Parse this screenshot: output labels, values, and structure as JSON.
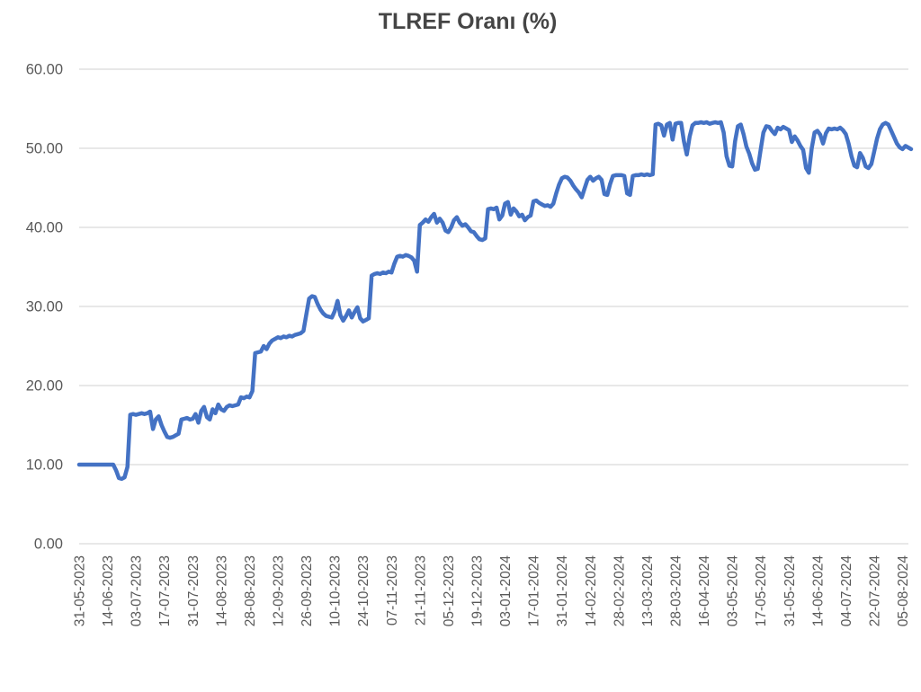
{
  "chart_data": {
    "type": "line",
    "title": "TLREF Oranı (%)",
    "xlabel": "",
    "ylabel": "",
    "ylim": [
      0,
      60
    ],
    "y_ticks": [
      0,
      10,
      20,
      30,
      40,
      50,
      60
    ],
    "y_tick_labels": [
      "0.00",
      "10.00",
      "20.00",
      "30.00",
      "40.00",
      "50.00",
      "60.00"
    ],
    "grid": "horizontal",
    "legend": "none",
    "x_tick_every": 10,
    "x_tick_labels": [
      "31-05-2023",
      "14-06-2023",
      "03-07-2023",
      "17-07-2023",
      "31-07-2023",
      "14-08-2023",
      "28-08-2023",
      "12-09-2023",
      "26-09-2023",
      "10-10-2023",
      "24-10-2023",
      "07-11-2023",
      "21-11-2023",
      "05-12-2023",
      "19-12-2023",
      "03-01-2024",
      "17-01-2024",
      "31-01-2024",
      "14-02-2024",
      "28-02-2024",
      "13-03-2024",
      "28-03-2024",
      "16-04-2024",
      "03-05-2024",
      "17-05-2024",
      "31-05-2024",
      "14-06-2024",
      "04-07-2024",
      "22-07-2024",
      "05-08-2024"
    ],
    "series": [
      {
        "name": "TLREF Oranı (%)",
        "values": [
          10,
          10,
          10,
          10,
          10,
          10,
          10,
          10,
          10,
          10,
          10,
          10,
          10,
          9.3,
          8.3,
          8.2,
          8.4,
          9.7,
          16.3,
          16.4,
          16.3,
          16.4,
          16.5,
          16.4,
          16.5,
          16.7,
          14.5,
          15.7,
          16.1,
          15,
          14.2,
          13.5,
          13.4,
          13.5,
          13.7,
          13.9,
          15.7,
          15.8,
          15.9,
          15.7,
          15.8,
          16.4,
          15.3,
          16.8,
          17.3,
          16,
          15.7,
          17,
          16.5,
          17.6,
          17,
          16.8,
          17.3,
          17.5,
          17.4,
          17.5,
          17.6,
          18.5,
          18.4,
          18.6,
          18.5,
          19.3,
          24.1,
          24.2,
          24.3,
          25,
          24.6,
          25.3,
          25.7,
          25.9,
          26.1,
          26,
          26.2,
          26.1,
          26.3,
          26.2,
          26.4,
          26.5,
          26.6,
          26.9,
          29,
          31,
          31.3,
          31.2,
          30.3,
          29.6,
          29.1,
          28.8,
          28.7,
          28.6,
          29.4,
          30.7,
          28.9,
          28.2,
          28.8,
          29.5,
          28.6,
          29.3,
          29.9,
          28.5,
          28.1,
          28.3,
          28.5,
          33.9,
          34.1,
          34.2,
          34.1,
          34.3,
          34.2,
          34.4,
          34.3,
          35.4,
          36.3,
          36.4,
          36.3,
          36.5,
          36.4,
          36.2,
          35.8,
          34.4,
          40.3,
          40.6,
          41,
          40.7,
          41.3,
          41.7,
          40.6,
          41.1,
          40.6,
          39.6,
          39.4,
          40,
          40.9,
          41.3,
          40.6,
          40.2,
          40.4,
          40,
          39.5,
          39.4,
          38.9,
          38.5,
          38.4,
          38.6,
          42.3,
          42.4,
          42.3,
          42.5,
          41,
          41.5,
          43,
          43.2,
          41.6,
          42.4,
          42,
          41.4,
          41.6,
          40.9,
          41.3,
          41.5,
          43.3,
          43.4,
          43.1,
          42.9,
          42.7,
          42.8,
          42.6,
          43,
          44.3,
          45.4,
          46.2,
          46.4,
          46.3,
          45.9,
          45.3,
          44.8,
          44.4,
          43.8,
          44.9,
          46,
          46.4,
          45.9,
          46.2,
          46.4,
          46,
          44.2,
          44.1,
          45.5,
          46.5,
          46.6,
          46.6,
          46.6,
          46.5,
          44.3,
          44.1,
          46.5,
          46.6,
          46.6,
          46.7,
          46.6,
          46.7,
          46.6,
          46.7,
          53,
          53.1,
          52.9,
          51.6,
          53,
          53.2,
          51.1,
          53.1,
          53.2,
          53.2,
          50.9,
          49.2,
          51.5,
          52.9,
          53.2,
          53.2,
          53.3,
          53.2,
          53.3,
          53.1,
          53.2,
          53.3,
          53.2,
          53.3,
          52,
          49,
          47.8,
          47.7,
          50.9,
          52.8,
          53,
          51.8,
          50.2,
          49.3,
          48.1,
          47.3,
          47.4,
          49.8,
          52,
          52.8,
          52.7,
          52.2,
          51.8,
          52.6,
          52.4,
          52.7,
          52.5,
          52.3,
          50.8,
          51.5,
          51,
          50.3,
          49.8,
          47.5,
          46.9,
          50,
          52,
          52.2,
          51.7,
          50.6,
          51.9,
          52.5,
          52.4,
          52.5,
          52.4,
          52.6,
          52.3,
          51.8,
          50.6,
          49,
          47.8,
          47.6,
          49.4,
          48.8,
          47.7,
          47.5,
          48,
          49.6,
          51.2,
          52.4,
          53,
          53.2,
          53,
          52.2,
          51.4,
          50.6,
          50.1,
          49.9,
          50.3,
          50.1,
          49.9
        ]
      }
    ],
    "colors": {
      "line": "#4472C4",
      "grid": "#D9D9D9",
      "tick_text": "#595959",
      "title_text": "#454545",
      "background": "#FFFFFF"
    }
  }
}
